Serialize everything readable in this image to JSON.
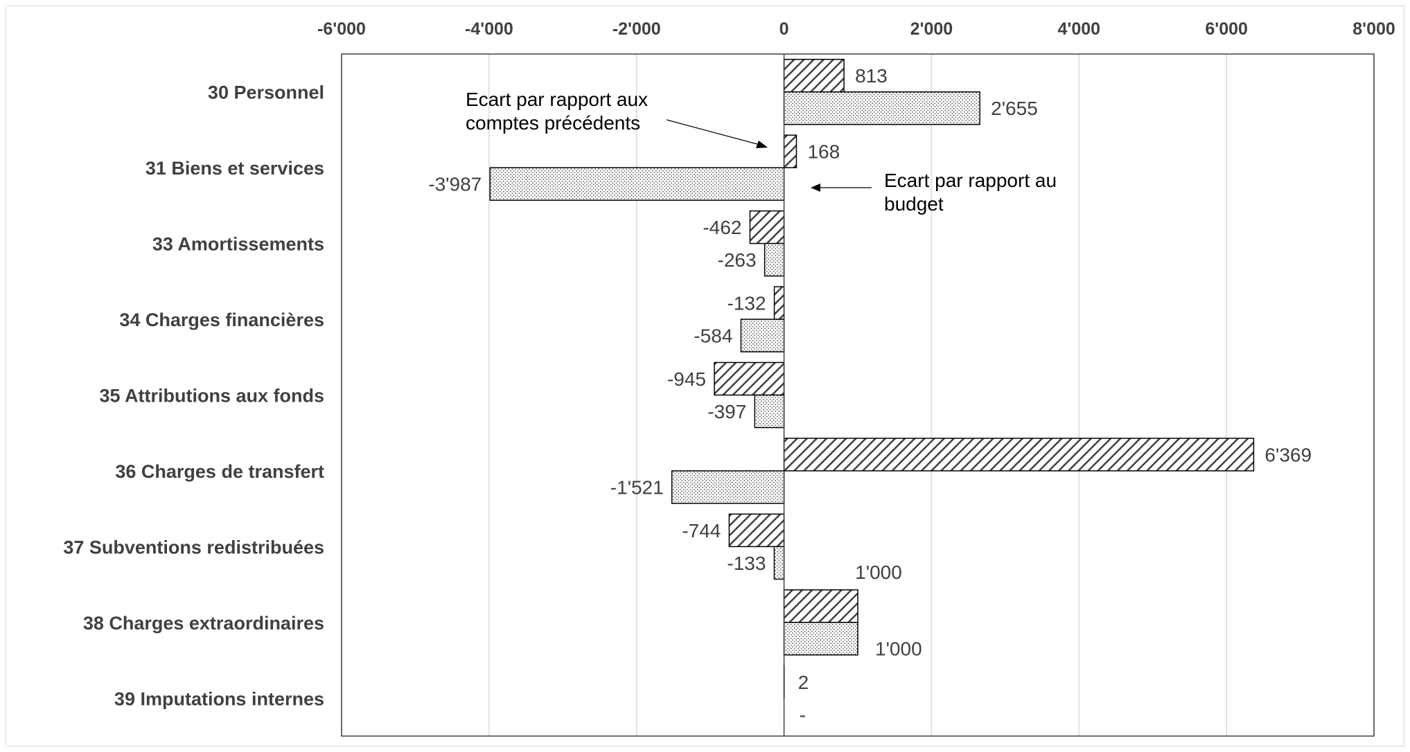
{
  "chart_data": {
    "type": "bar",
    "orientation": "horizontal",
    "categories": [
      "30 Personnel",
      "31 Biens et services",
      "33 Amortissements",
      "34 Charges financières",
      "35 Attributions aux fonds ",
      "36 Charges de transfert",
      "37 Subventions redistribuées",
      "38 Charges extraordinaires",
      "39 Imputations internes"
    ],
    "series": [
      {
        "pattern": "diagonal-hatch",
        "values": [
          813,
          168,
          -462,
          -132,
          -945,
          6369,
          -744,
          1000,
          2
        ],
        "labels": [
          "813",
          "168",
          "-462",
          "-132",
          "-945",
          "6'369",
          "-744",
          "1'000",
          "2"
        ]
      },
      {
        "pattern": "dotted",
        "values": [
          2655,
          -3987,
          -263,
          -584,
          -397,
          -1521,
          -133,
          1000,
          0
        ],
        "labels": [
          "2'655",
          "-3'987",
          "-263",
          "-584",
          "-397",
          "-1'521",
          "-133",
          "1'000",
          "-"
        ]
      }
    ],
    "xlim": [
      -6000,
      8000
    ],
    "xticks": [
      -6000,
      -4000,
      -2000,
      0,
      2000,
      4000,
      6000,
      8000
    ],
    "xtick_labels": [
      "-6'000",
      "-4'000",
      "-2'000",
      "0",
      "2'000",
      "4'000",
      "6'000",
      "8'000"
    ],
    "x_axis_position": "top",
    "grid": true,
    "annotations": [
      {
        "lines": [
          "Ecart par rapport aux",
          "comptes précédents"
        ],
        "points_to": "hatched series"
      },
      {
        "lines": [
          "Ecart par rapport  au",
          "budget"
        ],
        "points_to": "dotted series"
      }
    ],
    "colors": {
      "bar_fill": "#ffffff",
      "hatch": "#404040",
      "dots": "#555555",
      "grid": "#d9d9d9",
      "text": "#404040"
    }
  }
}
